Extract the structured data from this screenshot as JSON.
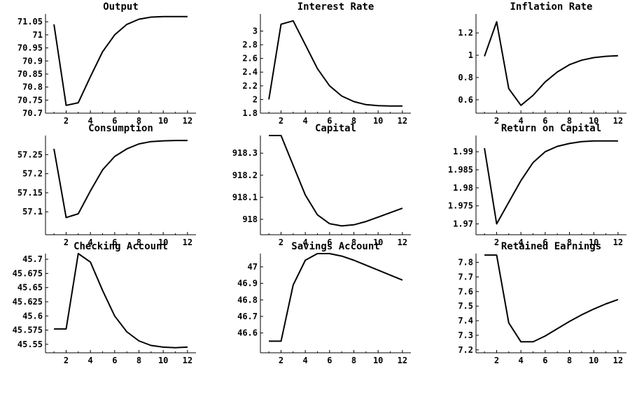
{
  "chart_data": [
    {
      "type": "line",
      "title": "Output",
      "x": [
        1,
        2,
        3,
        4,
        5,
        6,
        7,
        8,
        9,
        10,
        11,
        12
      ],
      "values": [
        71.04,
        70.73,
        70.74,
        70.84,
        70.935,
        71.0,
        71.04,
        71.06,
        71.068,
        71.07,
        71.07,
        71.07
      ],
      "xlim": [
        0.3,
        12.7
      ],
      "ylim": [
        70.7,
        71.08
      ],
      "xticks": [
        2,
        4,
        6,
        8,
        10,
        12
      ],
      "yticks": [
        70.7,
        70.75,
        70.8,
        70.85,
        70.9,
        70.95,
        71,
        71.05
      ],
      "ytick_labels": [
        "70.7",
        "70.75",
        "70.8",
        "70.85",
        "70.9",
        "70.95",
        "71",
        "71.05"
      ]
    },
    {
      "type": "line",
      "title": "Interest Rate",
      "x": [
        1,
        2,
        3,
        4,
        5,
        6,
        7,
        8,
        9,
        10,
        11,
        12
      ],
      "values": [
        2.0,
        3.1,
        3.15,
        2.8,
        2.45,
        2.2,
        2.05,
        1.97,
        1.925,
        1.91,
        1.905,
        1.905
      ],
      "xlim": [
        0.3,
        12.7
      ],
      "ylim": [
        1.8,
        3.25
      ],
      "xticks": [
        2,
        4,
        6,
        8,
        10,
        12
      ],
      "yticks": [
        1.8,
        2,
        2.2,
        2.4,
        2.6,
        2.8,
        3
      ],
      "ytick_labels": [
        "1.8",
        "2",
        "2.2",
        "2.4",
        "2.6",
        "2.8",
        "3"
      ]
    },
    {
      "type": "line",
      "title": "Inflation Rate",
      "x": [
        1,
        2,
        3,
        4,
        5,
        6,
        7,
        8,
        9,
        10,
        11,
        12
      ],
      "values": [
        0.99,
        1.3,
        0.7,
        0.55,
        0.64,
        0.76,
        0.85,
        0.915,
        0.955,
        0.978,
        0.99,
        0.995
      ],
      "xlim": [
        0.3,
        12.7
      ],
      "ylim": [
        0.48,
        1.37
      ],
      "xticks": [
        2,
        4,
        6,
        8,
        10,
        12
      ],
      "yticks": [
        0.6,
        0.8,
        1,
        1.2
      ],
      "ytick_labels": [
        "0.6",
        "0.8",
        "1",
        "1.2"
      ]
    },
    {
      "type": "line",
      "title": "Consumption",
      "x": [
        1,
        2,
        3,
        4,
        5,
        6,
        7,
        8,
        9,
        10,
        11,
        12
      ],
      "values": [
        57.265,
        57.085,
        57.095,
        57.155,
        57.21,
        57.245,
        57.265,
        57.278,
        57.284,
        57.286,
        57.287,
        57.287
      ],
      "xlim": [
        0.3,
        12.7
      ],
      "ylim": [
        57.04,
        57.3
      ],
      "xticks": [
        2,
        4,
        6,
        8,
        10,
        12
      ],
      "yticks": [
        57.1,
        57.15,
        57.2,
        57.25
      ],
      "ytick_labels": [
        "57.1",
        "57.15",
        "57.2",
        "57.25"
      ]
    },
    {
      "type": "line",
      "title": "Capital",
      "x": [
        1,
        2,
        3,
        4,
        5,
        6,
        7,
        8,
        9,
        10,
        11,
        12
      ],
      "values": [
        918.38,
        918.38,
        918.245,
        918.11,
        918.02,
        917.98,
        917.97,
        917.975,
        917.99,
        918.01,
        918.03,
        918.05
      ],
      "xlim": [
        0.3,
        12.7
      ],
      "ylim": [
        917.93,
        918.38
      ],
      "xticks": [
        2,
        4,
        6,
        8,
        10,
        12
      ],
      "yticks": [
        918,
        918.1,
        918.2,
        918.3
      ],
      "ytick_labels": [
        "918",
        "918.1",
        "918.2",
        "918.3"
      ]
    },
    {
      "type": "line",
      "title": "Return on Capital",
      "x": [
        1,
        2,
        3,
        4,
        5,
        6,
        7,
        8,
        9,
        10,
        11,
        12
      ],
      "values": [
        1.991,
        1.97,
        1.976,
        1.982,
        1.987,
        1.99,
        1.9915,
        1.9923,
        1.9928,
        1.993,
        1.993,
        1.993
      ],
      "xlim": [
        0.3,
        12.7
      ],
      "ylim": [
        1.967,
        1.9945
      ],
      "xticks": [
        2,
        4,
        6,
        8,
        10,
        12
      ],
      "yticks": [
        1.97,
        1.975,
        1.98,
        1.985,
        1.99
      ],
      "ytick_labels": [
        "1.97",
        "1.975",
        "1.98",
        "1.985",
        "1.99"
      ]
    },
    {
      "type": "line",
      "title": "Checking Account",
      "x": [
        1,
        2,
        3,
        4,
        5,
        6,
        7,
        8,
        9,
        10,
        11,
        12
      ],
      "values": [
        45.577,
        45.577,
        45.71,
        45.695,
        45.645,
        45.6,
        45.572,
        45.556,
        45.548,
        45.545,
        45.544,
        45.545
      ],
      "xlim": [
        0.3,
        12.7
      ],
      "ylim": [
        45.535,
        45.71
      ],
      "xticks": [
        2,
        4,
        6,
        8,
        10,
        12
      ],
      "yticks": [
        45.55,
        45.575,
        45.6,
        45.625,
        45.65,
        45.675,
        45.7
      ],
      "ytick_labels": [
        "45.55",
        "45.575",
        "45.6",
        "45.625",
        "45.65",
        "45.675",
        "45.7"
      ]
    },
    {
      "type": "line",
      "title": "Savings Account",
      "x": [
        1,
        2,
        3,
        4,
        5,
        6,
        7,
        8,
        9,
        10,
        11,
        12
      ],
      "values": [
        46.55,
        46.55,
        46.89,
        47.04,
        47.08,
        47.08,
        47.065,
        47.04,
        47.01,
        46.98,
        46.95,
        46.92
      ],
      "xlim": [
        0.3,
        12.7
      ],
      "ylim": [
        46.48,
        47.08
      ],
      "xticks": [
        2,
        4,
        6,
        8,
        10,
        12
      ],
      "yticks": [
        46.6,
        46.7,
        46.8,
        46.9,
        47
      ],
      "ytick_labels": [
        "46.6",
        "46.7",
        "46.8",
        "46.9",
        "47"
      ]
    },
    {
      "type": "line",
      "title": "Retained Earnings",
      "x": [
        1,
        2,
        3,
        4,
        5,
        6,
        7,
        8,
        9,
        10,
        11,
        12
      ],
      "values": [
        7.85,
        7.85,
        7.385,
        7.255,
        7.255,
        7.295,
        7.345,
        7.395,
        7.44,
        7.48,
        7.515,
        7.545
      ],
      "xlim": [
        0.3,
        12.7
      ],
      "ylim": [
        7.18,
        7.86
      ],
      "xticks": [
        2,
        4,
        6,
        8,
        10,
        12
      ],
      "yticks": [
        7.2,
        7.3,
        7.4,
        7.5,
        7.6,
        7.7,
        7.8
      ],
      "ytick_labels": [
        "7.2",
        "7.3",
        "7.4",
        "7.5",
        "7.6",
        "7.7",
        "7.8"
      ]
    }
  ]
}
